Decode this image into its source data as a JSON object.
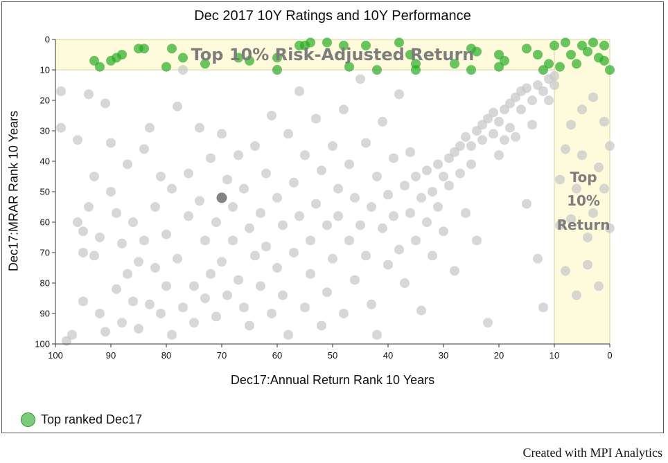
{
  "title": "Dec 2017 10Y Ratings and 10Y Performance",
  "xlabel": "Dec17:Annual Return Rank 10 Years",
  "ylabel": "Dec17:MRAR Rank 10 Years",
  "legend_label": "Top ranked Dec17",
  "credit": "Created with MPI Analytics",
  "zone_top_label": "Top 10% Risk-Adjusted Return",
  "zone_right_label": [
    "Top",
    "10%",
    "Return"
  ],
  "colors": {
    "zone_fill": "#fdfbdc",
    "gray_point": "#c8c8c8",
    "dark_point": "#6e6e6e",
    "green_point": "#22aa22",
    "green_dark_point": "#148a14"
  },
  "chart_data": {
    "type": "scatter",
    "title": "Dec 2017 10Y Ratings and 10Y Performance",
    "xlabel": "Dec17:Annual Return Rank 10 Years",
    "ylabel": "Dec17:MRAR Rank 10 Years",
    "xlim": [
      100,
      0
    ],
    "ylim": [
      0,
      100
    ],
    "x_reversed": true,
    "y_reversed": true,
    "xticks": [
      100,
      90,
      80,
      70,
      60,
      50,
      40,
      30,
      20,
      10,
      0
    ],
    "yticks": [
      0,
      10,
      20,
      30,
      40,
      50,
      60,
      70,
      80,
      90,
      100
    ],
    "grid": false,
    "legend_position": "bottom-left",
    "highlight_zones": [
      {
        "label": "Top 10% Risk-Adjusted Return",
        "x": [
          100,
          0
        ],
        "y": [
          0,
          10
        ]
      },
      {
        "label": "Top 10% Return",
        "x": [
          10,
          0
        ],
        "y": [
          0,
          100
        ]
      }
    ],
    "series": [
      {
        "name": "Top ranked Dec17",
        "points": [
          [
            93,
            7
          ],
          [
            92,
            9
          ],
          [
            90,
            7
          ],
          [
            89,
            6
          ],
          [
            88,
            5
          ],
          [
            85,
            3
          ],
          [
            84,
            3
          ],
          [
            79,
            3
          ],
          [
            80,
            9
          ],
          [
            77,
            6
          ],
          [
            73,
            8
          ],
          [
            67,
            6
          ],
          [
            65,
            7
          ],
          [
            60,
            6
          ],
          [
            60,
            10
          ],
          [
            56,
            2
          ],
          [
            55,
            2
          ],
          [
            54,
            1
          ],
          [
            51,
            1
          ],
          [
            48,
            2
          ],
          [
            47,
            9
          ],
          [
            44,
            2
          ],
          [
            42,
            10
          ],
          [
            38,
            1
          ],
          [
            36,
            5
          ],
          [
            35,
            8
          ],
          [
            35,
            10
          ],
          [
            28,
            8
          ],
          [
            25,
            3
          ],
          [
            25,
            10
          ],
          [
            24,
            4
          ],
          [
            20,
            5
          ],
          [
            20,
            9
          ],
          [
            19,
            7
          ],
          [
            15,
            3
          ],
          [
            13,
            5
          ],
          [
            12,
            10
          ],
          [
            11,
            8
          ],
          [
            10,
            2
          ],
          [
            9,
            9
          ],
          [
            8,
            1
          ],
          [
            7,
            5
          ],
          [
            6,
            8
          ],
          [
            5,
            2
          ],
          [
            4,
            4
          ],
          [
            3,
            1
          ],
          [
            2,
            6
          ],
          [
            1,
            2
          ],
          [
            1,
            7
          ],
          [
            0,
            10
          ]
        ]
      },
      {
        "name": "",
        "points": [
          [
            70,
            52
          ]
        ]
      },
      {
        "name": "",
        "points": [
          [
            99,
            17
          ],
          [
            99,
            29
          ],
          [
            98,
            99
          ],
          [
            97,
            97
          ],
          [
            96,
            60
          ],
          [
            96,
            33
          ],
          [
            95,
            70
          ],
          [
            95,
            63
          ],
          [
            95,
            86
          ],
          [
            94,
            18
          ],
          [
            94,
            55
          ],
          [
            93,
            45
          ],
          [
            93,
            71
          ],
          [
            92,
            90
          ],
          [
            92,
            65
          ],
          [
            91,
            96
          ],
          [
            91,
            21
          ],
          [
            90,
            50
          ],
          [
            90,
            34
          ],
          [
            89,
            57
          ],
          [
            89,
            82
          ],
          [
            88,
            67
          ],
          [
            88,
            93
          ],
          [
            87,
            77
          ],
          [
            87,
            41
          ],
          [
            86,
            60
          ],
          [
            86,
            86
          ],
          [
            85,
            73
          ],
          [
            85,
            95
          ],
          [
            84,
            36
          ],
          [
            84,
            66
          ],
          [
            83,
            29
          ],
          [
            83,
            87
          ],
          [
            82,
            55
          ],
          [
            82,
            75
          ],
          [
            81,
            90
          ],
          [
            81,
            45
          ],
          [
            80,
            81
          ],
          [
            80,
            64
          ],
          [
            79,
            49
          ],
          [
            79,
            97
          ],
          [
            78,
            22
          ],
          [
            78,
            72
          ],
          [
            77,
            88
          ],
          [
            77,
            10
          ],
          [
            76,
            44
          ],
          [
            76,
            58
          ],
          [
            75,
            81
          ],
          [
            75,
            93
          ],
          [
            74,
            29
          ],
          [
            74,
            53
          ],
          [
            73,
            66
          ],
          [
            73,
            85
          ],
          [
            72,
            39
          ],
          [
            72,
            77
          ],
          [
            71,
            60
          ],
          [
            71,
            91
          ],
          [
            70,
            31
          ],
          [
            70,
            73
          ],
          [
            69,
            46
          ],
          [
            69,
            84
          ],
          [
            68,
            55
          ],
          [
            68,
            66
          ],
          [
            67,
            38
          ],
          [
            67,
            79
          ],
          [
            66,
            88
          ],
          [
            66,
            49
          ],
          [
            65,
            62
          ],
          [
            65,
            94
          ],
          [
            64,
            35
          ],
          [
            64,
            71
          ],
          [
            63,
            57
          ],
          [
            63,
            81
          ],
          [
            62,
            44
          ],
          [
            62,
            68
          ],
          [
            61,
            90
          ],
          [
            61,
            25
          ],
          [
            60,
            52
          ],
          [
            60,
            75
          ],
          [
            59,
            61
          ],
          [
            59,
            84
          ],
          [
            58,
            31
          ],
          [
            58,
            97
          ],
          [
            57,
            47
          ],
          [
            57,
            70
          ],
          [
            56,
            58
          ],
          [
            56,
            17
          ],
          [
            55,
            88
          ],
          [
            55,
            38
          ],
          [
            54,
            66
          ],
          [
            54,
            77
          ],
          [
            53,
            26
          ],
          [
            53,
            54
          ],
          [
            52,
            43
          ],
          [
            52,
            94
          ],
          [
            51,
            61
          ],
          [
            51,
            83
          ],
          [
            50,
            35
          ],
          [
            50,
            72
          ],
          [
            49,
            49
          ],
          [
            49,
            58
          ],
          [
            48,
            90
          ],
          [
            48,
            23
          ],
          [
            47,
            66
          ],
          [
            47,
            41
          ],
          [
            46,
            52
          ],
          [
            46,
            79
          ],
          [
            45,
            13
          ],
          [
            45,
            61
          ],
          [
            44,
            71
          ],
          [
            44,
            34
          ],
          [
            43,
            55
          ],
          [
            43,
            87
          ],
          [
            42,
            45
          ],
          [
            42,
            97
          ],
          [
            41,
            62
          ],
          [
            41,
            27
          ],
          [
            40,
            51
          ],
          [
            40,
            74
          ],
          [
            39,
            39
          ],
          [
            39,
            58
          ],
          [
            38,
            69
          ],
          [
            38,
            18
          ],
          [
            37,
            48
          ],
          [
            37,
            80
          ],
          [
            36,
            57
          ],
          [
            36,
            37
          ],
          [
            35,
            45
          ],
          [
            35,
            66
          ],
          [
            34,
            52
          ],
          [
            34,
            89
          ],
          [
            33,
            43
          ],
          [
            33,
            60
          ],
          [
            32,
            50
          ],
          [
            32,
            71
          ],
          [
            31,
            41
          ],
          [
            31,
            55
          ],
          [
            30,
            45
          ],
          [
            30,
            63
          ],
          [
            29,
            39
          ],
          [
            29,
            48
          ],
          [
            28,
            37
          ],
          [
            28,
            76
          ],
          [
            27,
            44
          ],
          [
            27,
            35
          ],
          [
            26,
            32
          ],
          [
            26,
            57
          ],
          [
            25,
            35
          ],
          [
            25,
            41
          ],
          [
            24,
            30
          ],
          [
            24,
            66
          ],
          [
            23,
            28
          ],
          [
            23,
            33
          ],
          [
            22,
            26
          ],
          [
            22,
            93
          ],
          [
            21,
            31
          ],
          [
            21,
            24
          ],
          [
            20,
            27
          ],
          [
            20,
            38
          ],
          [
            19,
            23
          ],
          [
            19,
            33
          ],
          [
            18,
            21
          ],
          [
            18,
            29
          ],
          [
            17,
            19
          ],
          [
            17,
            32
          ],
          [
            16,
            17
          ],
          [
            16,
            23
          ],
          [
            15,
            16
          ],
          [
            15,
            54
          ],
          [
            14,
            20
          ],
          [
            14,
            28
          ],
          [
            13,
            15
          ],
          [
            13,
            72
          ],
          [
            12,
            17
          ],
          [
            12,
            88
          ],
          [
            11,
            13
          ],
          [
            11,
            20
          ],
          [
            10,
            12
          ],
          [
            10,
            15
          ],
          [
            9,
            46
          ],
          [
            9,
            61
          ],
          [
            8,
            36
          ],
          [
            8,
            76
          ],
          [
            7,
            28
          ],
          [
            7,
            59
          ],
          [
            6,
            49
          ],
          [
            6,
            84
          ],
          [
            5,
            23
          ],
          [
            5,
            38
          ],
          [
            4,
            65
          ],
          [
            4,
            74
          ],
          [
            3,
            19
          ],
          [
            3,
            57
          ],
          [
            2,
            42
          ],
          [
            2,
            81
          ],
          [
            1,
            27
          ],
          [
            1,
            49
          ],
          [
            0,
            35
          ],
          [
            0,
            62
          ]
        ]
      }
    ]
  }
}
